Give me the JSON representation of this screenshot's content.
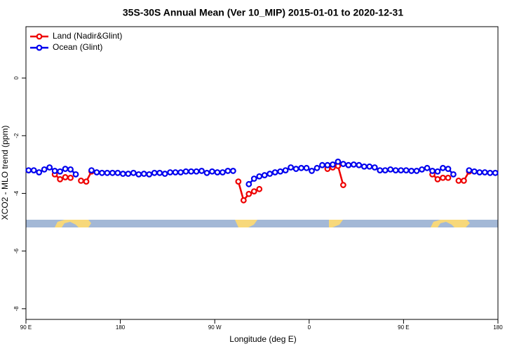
{
  "chart_data": {
    "type": "line",
    "title": "35S-30S Annual Mean (Ver 10_MIP)   2015-01-01 to 2020-12-31",
    "x_label": "Longitude (deg E)",
    "y_label": "XCO2 - MLO trend (ppm)",
    "xlim": [
      90,
      540
    ],
    "xticks": [
      {
        "value": 90,
        "label": "90 E"
      },
      {
        "value": 180,
        "label": "180"
      },
      {
        "value": 270,
        "label": "90 W"
      },
      {
        "value": 360,
        "label": "0"
      },
      {
        "value": 450,
        "label": "90 E"
      },
      {
        "value": 540,
        "label": "180"
      }
    ],
    "ylim": [
      -8.37,
      1.78
    ],
    "yticks": [
      0,
      -2,
      -4,
      -6,
      -8
    ],
    "legend": "top-left",
    "x": [
      92.5,
      97.5,
      102.5,
      107.5,
      112.5,
      117.5,
      122.5,
      127.5,
      132.5,
      137.5,
      142.5,
      147.5,
      152.5,
      157.5,
      162.5,
      167.5,
      172.5,
      177.5,
      182.5,
      187.5,
      192.5,
      197.5,
      202.5,
      207.5,
      212.5,
      217.5,
      222.5,
      227.5,
      232.5,
      237.5,
      242.5,
      247.5,
      252.5,
      257.5,
      262.5,
      267.5,
      272.5,
      277.5,
      282.5,
      287.5,
      292.5,
      297.5,
      302.5,
      307.5,
      312.5,
      317.5,
      322.5,
      327.5,
      332.5,
      337.5,
      342.5,
      347.5,
      352.5,
      357.5,
      362.5,
      367.5,
      372.5,
      377.5,
      382.5,
      387.5,
      392.5,
      397.5,
      402.5,
      407.5,
      412.5,
      417.5,
      422.5,
      427.5,
      432.5,
      437.5,
      442.5,
      447.5,
      452.5,
      457.5,
      462.5,
      467.5,
      472.5,
      477.5,
      482.5,
      487.5,
      492.5,
      497.5,
      502.5,
      507.5,
      512.5,
      517.5,
      522.5,
      527.5,
      532.5,
      537.5
    ],
    "series": [
      {
        "name": "Land (Nadir&Glint)",
        "color": "#ee0000",
        "values": [
          null,
          null,
          null,
          null,
          null,
          -3.34,
          -3.51,
          -3.44,
          -3.46,
          null,
          -3.56,
          -3.59,
          -3.24,
          null,
          null,
          null,
          null,
          null,
          null,
          null,
          null,
          null,
          null,
          null,
          null,
          null,
          null,
          null,
          null,
          null,
          null,
          null,
          null,
          null,
          null,
          null,
          null,
          null,
          null,
          null,
          -3.59,
          -4.24,
          -4.02,
          -3.93,
          -3.85,
          null,
          null,
          null,
          null,
          null,
          null,
          null,
          null,
          null,
          null,
          null,
          null,
          -3.15,
          -3.1,
          -3.05,
          -3.71,
          null,
          null,
          null,
          null,
          null,
          null,
          null,
          null,
          null,
          null,
          null,
          null,
          null,
          null,
          null,
          null,
          -3.34,
          -3.51,
          -3.46,
          -3.46,
          null,
          -3.56,
          -3.56,
          -3.24,
          null,
          null,
          null,
          null,
          null
        ]
      },
      {
        "name": "Ocean (Glint)",
        "color": "#0000ee",
        "values": [
          -3.2,
          -3.2,
          -3.27,
          -3.17,
          -3.1,
          -3.22,
          -3.24,
          -3.15,
          -3.17,
          -3.34,
          null,
          null,
          -3.2,
          -3.27,
          -3.29,
          -3.29,
          -3.29,
          -3.29,
          -3.32,
          -3.32,
          -3.29,
          -3.34,
          -3.32,
          -3.34,
          -3.29,
          -3.29,
          -3.32,
          -3.27,
          -3.27,
          -3.27,
          -3.24,
          -3.24,
          -3.24,
          -3.22,
          -3.29,
          -3.24,
          -3.27,
          -3.27,
          -3.22,
          -3.22,
          null,
          null,
          -3.68,
          -3.49,
          -3.41,
          -3.37,
          -3.32,
          -3.27,
          -3.24,
          -3.2,
          -3.1,
          -3.15,
          -3.12,
          -3.12,
          -3.22,
          -3.12,
          -3.02,
          -3.02,
          -3.0,
          -2.9,
          -2.98,
          -3.02,
          -3.0,
          -3.02,
          -3.07,
          -3.07,
          -3.1,
          -3.2,
          -3.2,
          -3.17,
          -3.2,
          -3.2,
          -3.2,
          -3.22,
          -3.22,
          -3.17,
          -3.12,
          -3.22,
          -3.24,
          -3.12,
          -3.15,
          -3.34,
          null,
          null,
          -3.2,
          -3.24,
          -3.27,
          -3.27,
          -3.29,
          -3.29
        ]
      }
    ]
  }
}
